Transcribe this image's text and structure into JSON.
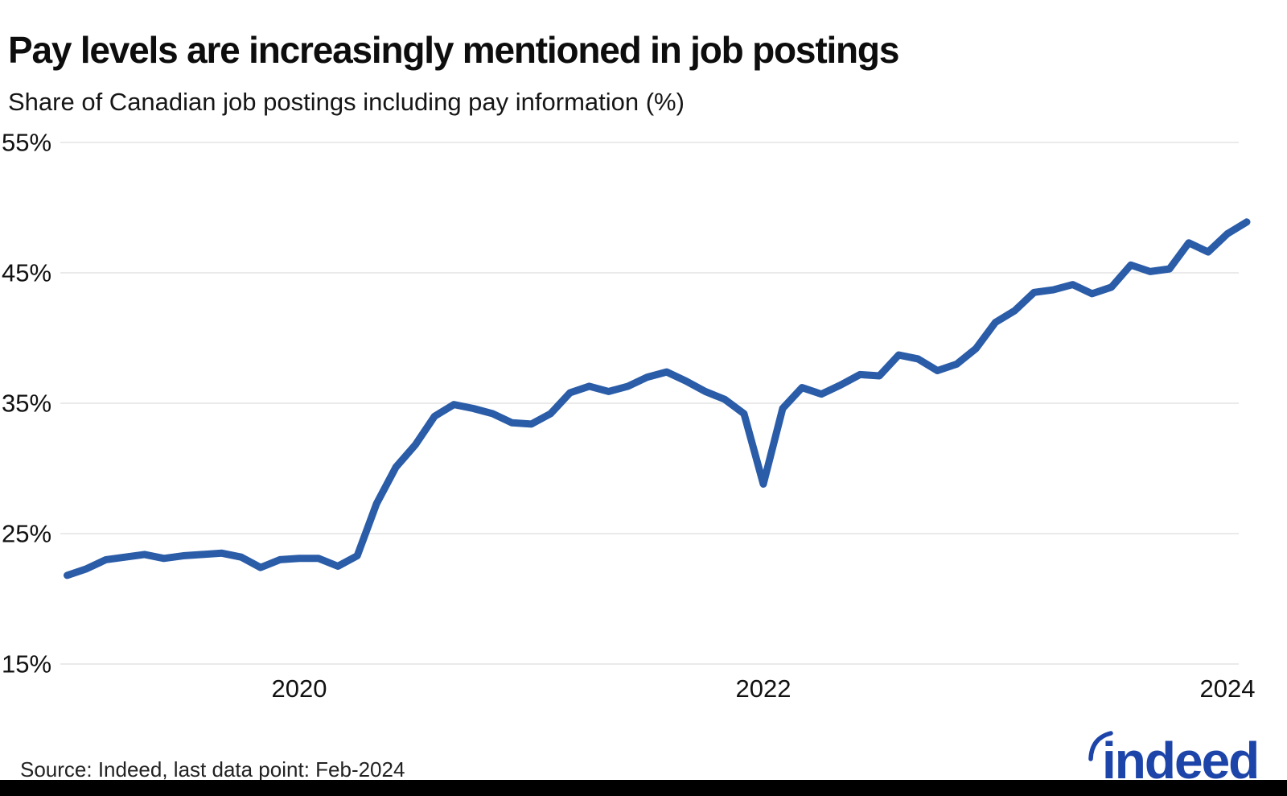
{
  "header": {
    "title": "Pay levels are increasingly mentioned in job postings",
    "subtitle": "Share of Canadian job postings including pay information (%)"
  },
  "chart_data": {
    "type": "line",
    "title": "Pay levels are increasingly mentioned in job postings",
    "subtitle": "Share of Canadian job postings including pay information (%)",
    "xlabel": "",
    "ylabel": "Share of Canadian job postings including pay information (%)",
    "ylim": [
      15,
      55
    ],
    "grid": "horizontal-only",
    "legend": "none",
    "line_color": "#2a5ca8",
    "gridline_color": "#e3e3e3",
    "x": [
      "2019-01",
      "2019-02",
      "2019-03",
      "2019-04",
      "2019-05",
      "2019-06",
      "2019-07",
      "2019-08",
      "2019-09",
      "2019-10",
      "2019-11",
      "2019-12",
      "2020-01",
      "2020-02",
      "2020-03",
      "2020-04",
      "2020-05",
      "2020-06",
      "2020-07",
      "2020-08",
      "2020-09",
      "2020-10",
      "2020-11",
      "2020-12",
      "2021-01",
      "2021-02",
      "2021-03",
      "2021-04",
      "2021-05",
      "2021-06",
      "2021-07",
      "2021-08",
      "2021-09",
      "2021-10",
      "2021-11",
      "2021-12",
      "2022-01",
      "2022-02",
      "2022-03",
      "2022-04",
      "2022-05",
      "2022-06",
      "2022-07",
      "2022-08",
      "2022-09",
      "2022-10",
      "2022-11",
      "2022-12",
      "2023-01",
      "2023-02",
      "2023-03",
      "2023-04",
      "2023-05",
      "2023-06",
      "2023-07",
      "2023-08",
      "2023-09",
      "2023-10",
      "2023-11",
      "2023-12",
      "2024-01",
      "2024-02"
    ],
    "series": [
      {
        "name": "Share of Canadian job postings including pay information (%)",
        "values": [
          21.8,
          22.3,
          23.0,
          23.2,
          23.4,
          23.1,
          23.3,
          23.4,
          23.5,
          23.2,
          22.4,
          23.0,
          23.1,
          23.1,
          22.5,
          23.3,
          27.3,
          30.1,
          31.8,
          34.0,
          34.9,
          34.6,
          34.2,
          33.5,
          33.4,
          34.2,
          35.8,
          36.3,
          35.9,
          36.3,
          37.0,
          37.4,
          36.7,
          35.9,
          35.3,
          34.2,
          28.8,
          34.6,
          36.2,
          35.7,
          36.4,
          37.2,
          37.1,
          38.7,
          38.4,
          37.5,
          38.0,
          39.2,
          41.2,
          42.1,
          43.5,
          43.7,
          44.1,
          43.4,
          43.9,
          45.6,
          45.1,
          45.3,
          47.3,
          46.6,
          48.0,
          48.9
        ]
      }
    ],
    "y_ticks": [
      {
        "value": 55,
        "label": "55%"
      },
      {
        "value": 45,
        "label": "45%"
      },
      {
        "value": 35,
        "label": "35%"
      },
      {
        "value": 25,
        "label": "25%"
      },
      {
        "value": 15,
        "label": "15%"
      }
    ],
    "x_ticks": [
      {
        "month_index": 12,
        "label": "2020"
      },
      {
        "month_index": 36,
        "label": "2022"
      },
      {
        "month_index": 60,
        "label": "2024"
      }
    ]
  },
  "footer": {
    "source": "Source: Indeed, last data point: Feb-2024"
  },
  "logo": {
    "text": "indeed",
    "color": "#1c44a9"
  }
}
